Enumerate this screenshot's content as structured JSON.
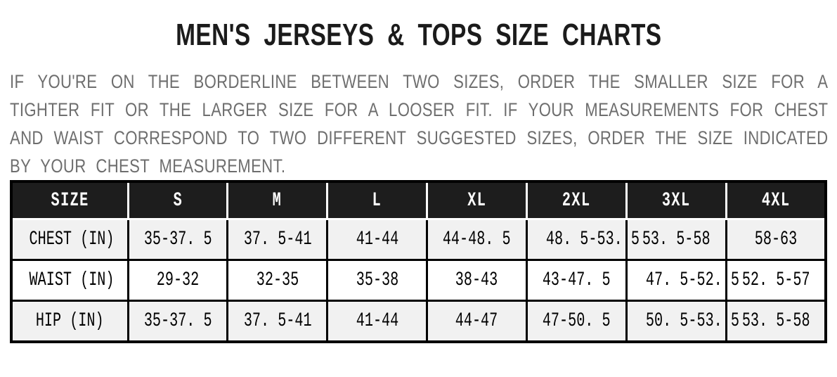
{
  "title": "MEN'S JERSEYS & TOPS SIZE CHARTS",
  "description": {
    "lines": [
      "IF YOU'RE ON THE BORDERLINE BETWEEN TWO SIZES, ORDER THE SMALLER SIZE FOR A",
      "TIGHTER FIT OR THE LARGER SIZE FOR A LOOSER FIT. IF YOUR MEASUREMENTS FOR CHEST",
      "AND WAIST CORRESPOND TO TWO DIFFERENT SUGGESTED SIZES, ORDER THE SIZE INDICATED",
      "BY YOUR CHEST MEASUREMENT."
    ]
  },
  "size_chart": {
    "columns": [
      "SIZE",
      "S",
      "M",
      "L",
      "XL",
      "2XL",
      "3XL",
      "4XL"
    ],
    "rows": [
      {
        "label": "CHEST (IN)",
        "values": [
          "35-37. 5",
          "37. 5-41",
          "41-44",
          "44-48. 5",
          "48. 5-53. 5",
          "53. 5-58",
          "58-63"
        ]
      },
      {
        "label": "WAIST (IN)",
        "values": [
          "29-32",
          "32-35",
          "35-38",
          "38-43",
          "43-47. 5",
          "47. 5-52. 5",
          "52. 5-57"
        ]
      },
      {
        "label": "HIP (IN)",
        "values": [
          "35-37. 5",
          "37. 5-41",
          "41-44",
          "44-47",
          "47-50. 5",
          "50. 5-53. 5",
          "53. 5-58"
        ]
      }
    ]
  },
  "colors": {
    "header_background": "#1d1d1d",
    "header_text": "#ffffff",
    "row_striped_background": "#f1f1f1",
    "row_plain_background": "#ffffff",
    "table_border": "#000000",
    "title_text": "#1b1b1b",
    "paragraph_text": "#6e6e6e"
  }
}
